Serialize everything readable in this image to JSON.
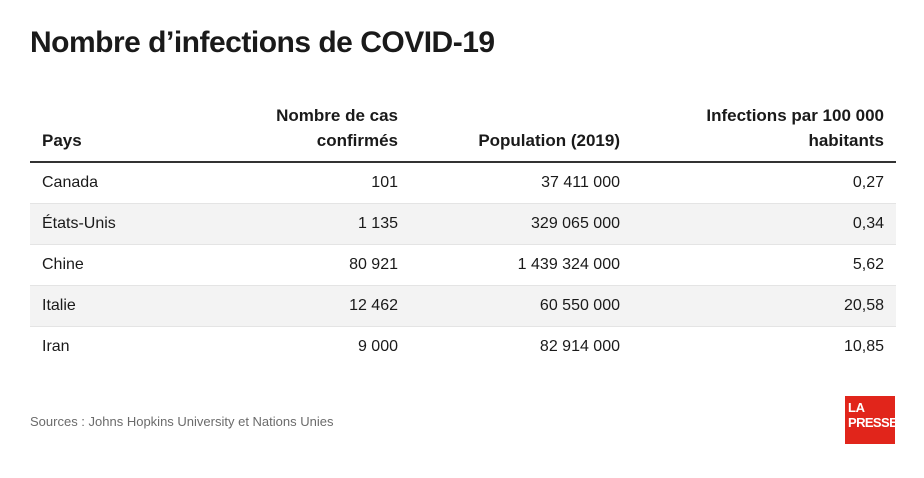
{
  "title": "Nombre d’infections de COVID-19",
  "table": {
    "headers": {
      "country": "Pays",
      "cases_line1": "Nombre de cas",
      "cases_line2": "confirmés",
      "population": "Population (2019)",
      "rate_line1": "Infections par 100 000",
      "rate_line2": "habitants"
    },
    "rows": [
      {
        "country": "Canada",
        "cases": "101",
        "population": "37 411 000",
        "rate": "0,27"
      },
      {
        "country": "États-Unis",
        "cases": "1 135",
        "population": "329 065 000",
        "rate": "0,34"
      },
      {
        "country": "Chine",
        "cases": "80 921",
        "population": "1 439 324 000",
        "rate": "5,62"
      },
      {
        "country": "Italie",
        "cases": "12 462",
        "population": "60 550 000",
        "rate": "20,58"
      },
      {
        "country": "Iran",
        "cases": "9 000",
        "population": "82 914 000",
        "rate": "10,85"
      }
    ]
  },
  "source": "Sources : Johns Hopkins University et Nations Unies",
  "logo": {
    "line1": "LA",
    "line2": "PRESSE",
    "color": "#e1251b"
  },
  "chart_data": {
    "type": "table",
    "title": "Nombre d’infections de COVID-19",
    "columns": [
      "Pays",
      "Nombre de cas confirmés",
      "Population (2019)",
      "Infections par 100 000 habitants"
    ],
    "rows": [
      [
        "Canada",
        101,
        37411000,
        0.27
      ],
      [
        "États-Unis",
        1135,
        329065000,
        0.34
      ],
      [
        "Chine",
        80921,
        1439324000,
        5.62
      ],
      [
        "Italie",
        12462,
        60550000,
        20.58
      ],
      [
        "Iran",
        9000,
        82914000,
        10.85
      ]
    ],
    "row_striping": "alternate-gray"
  }
}
